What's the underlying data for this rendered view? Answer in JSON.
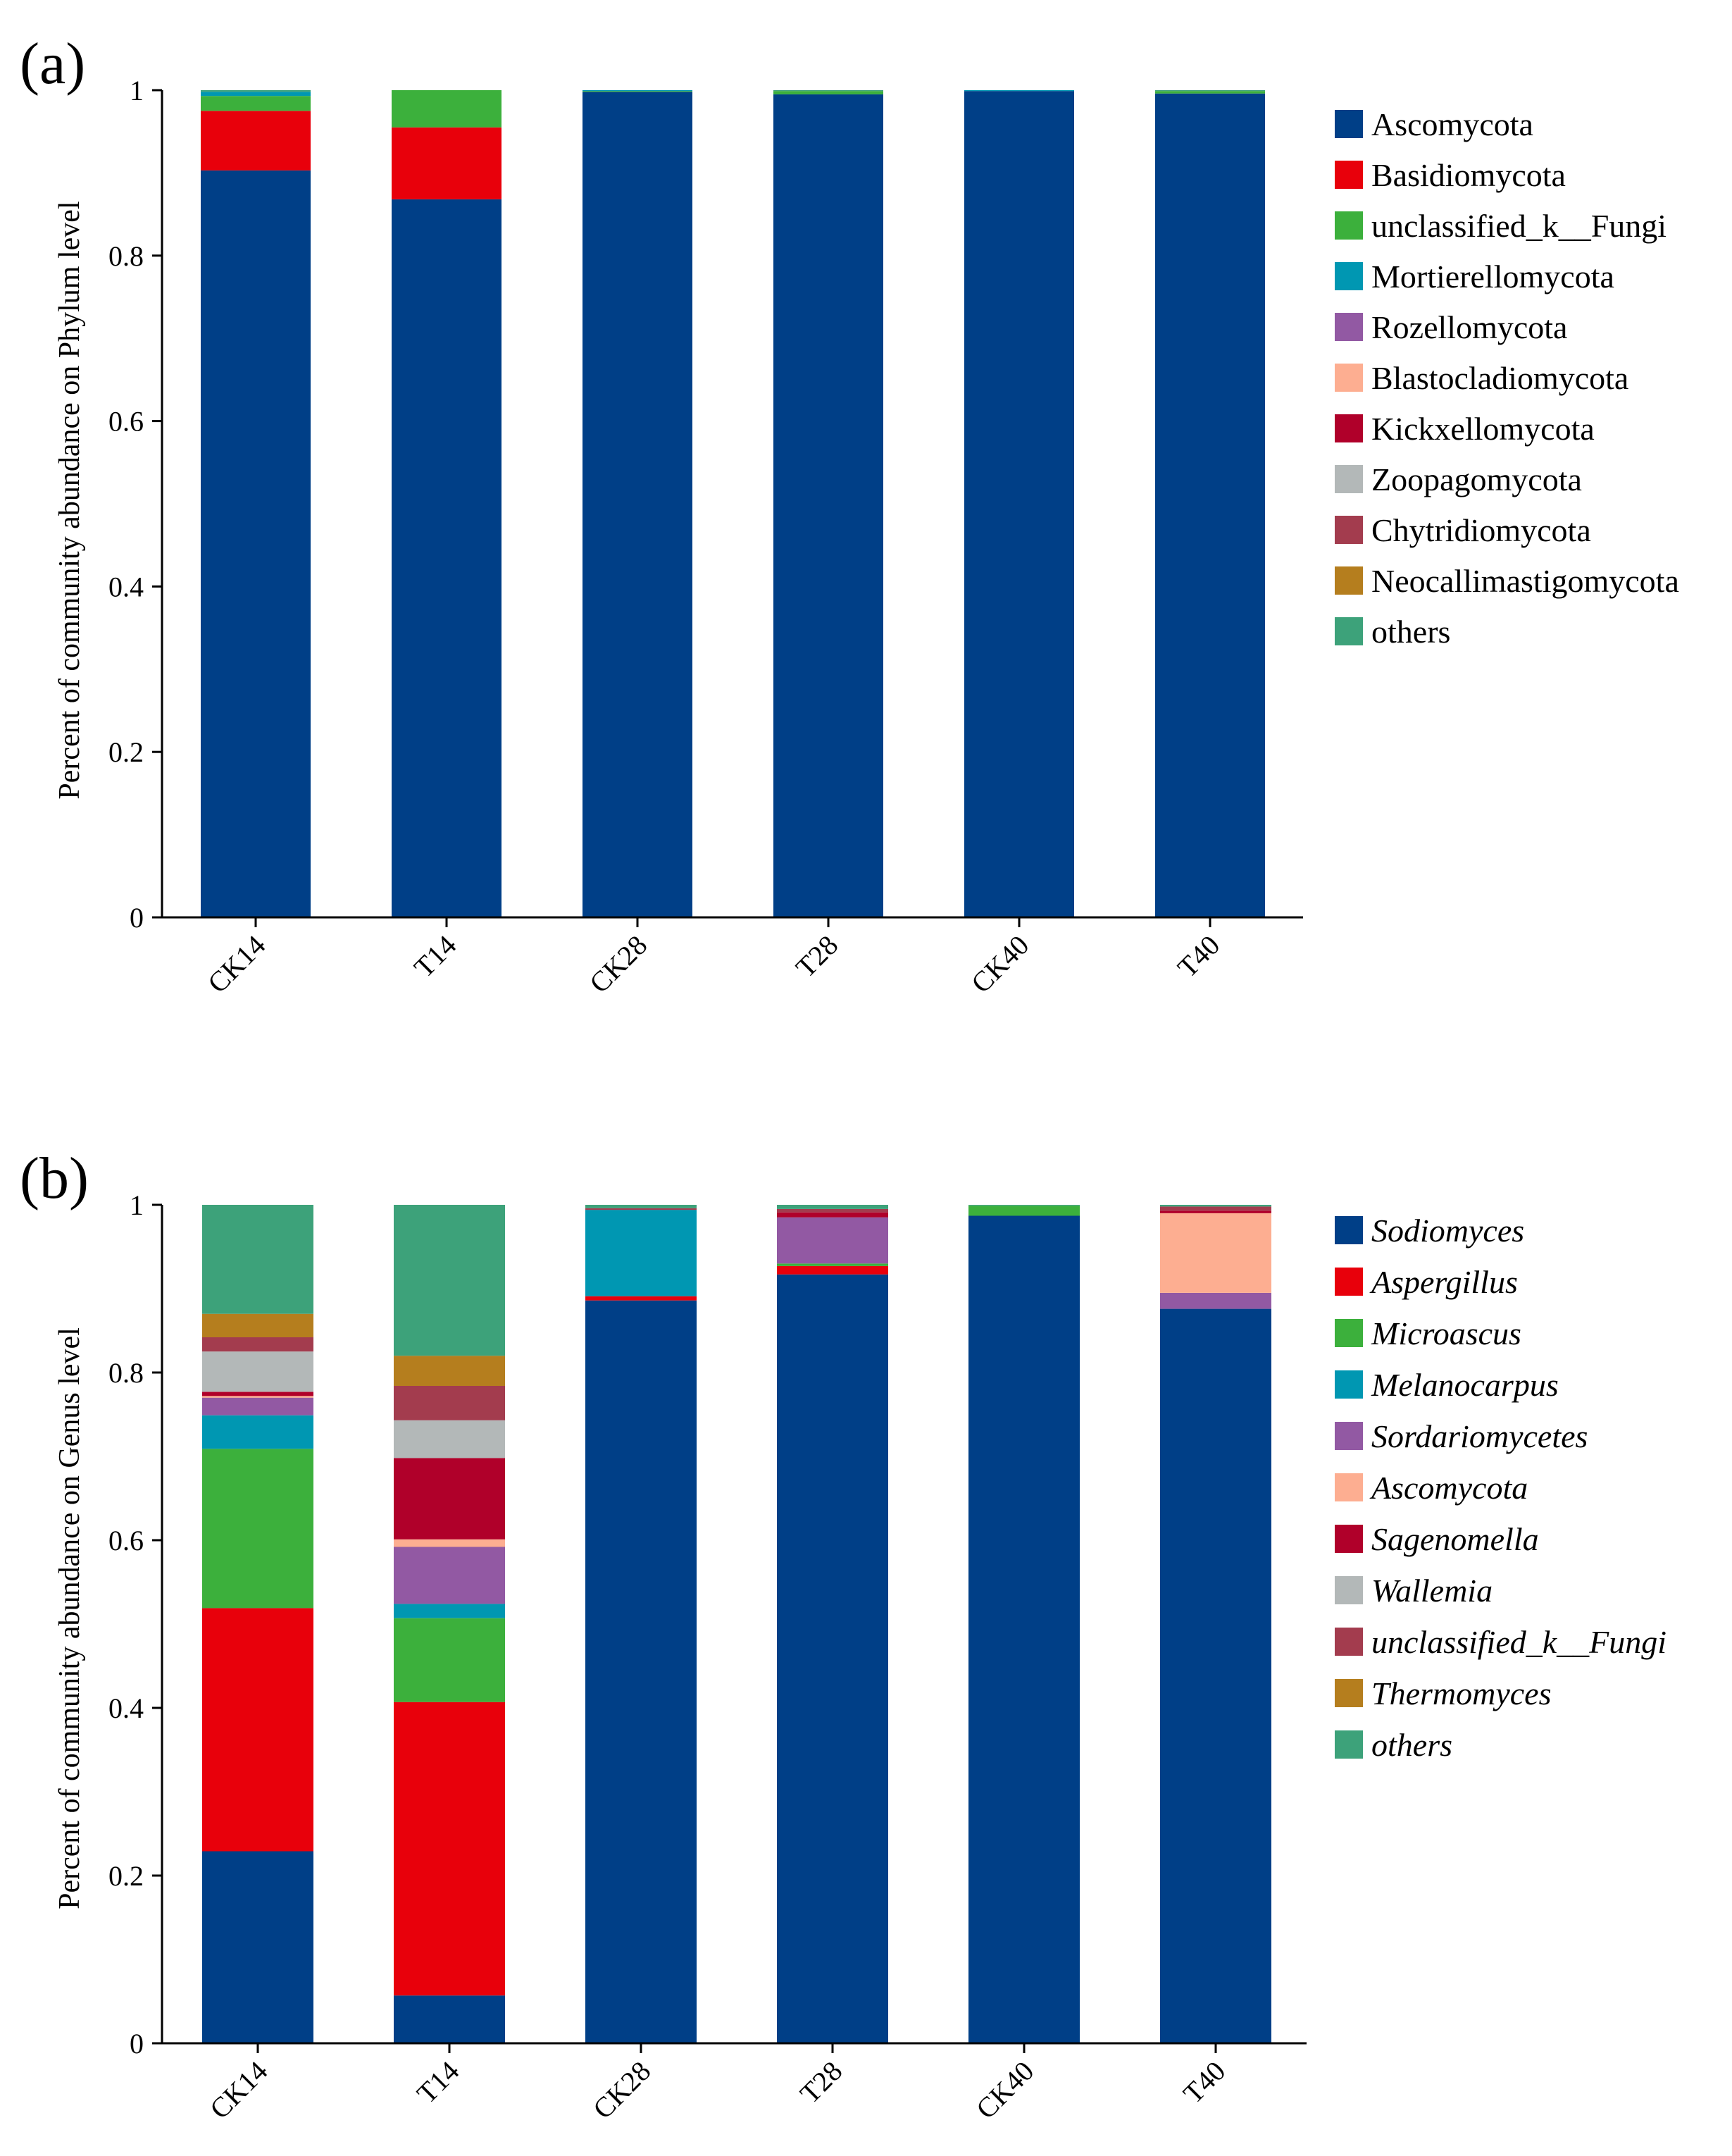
{
  "chart_data": [
    {
      "panel": "(a)",
      "type": "bar",
      "stacked": true,
      "ylabel": "Percent of community abundance on Phylum level",
      "ylim": [
        0,
        1
      ],
      "yticks": [
        "0",
        "0.2",
        "0.4",
        "0.6",
        "0.8",
        "1"
      ],
      "categories": [
        "CK14",
        "T14",
        "CK28",
        "T28",
        "CK40",
        "T40"
      ],
      "legend_italic": false,
      "series": [
        {
          "name": "Ascomycota",
          "color": "#003f87",
          "values": [
            0.903,
            0.868,
            0.998,
            0.995,
            0.999,
            0.996
          ]
        },
        {
          "name": "Basidiomycota",
          "color": "#e8000b",
          "values": [
            0.072,
            0.087,
            0.0,
            0.0,
            0.0,
            0.0
          ]
        },
        {
          "name": "unclassified_k__Fungi",
          "color": "#3cb03c",
          "values": [
            0.018,
            0.045,
            0.001,
            0.004,
            0.0,
            0.003
          ]
        },
        {
          "name": "Mortierellomycota",
          "color": "#0097b2",
          "values": [
            0.005,
            0.0,
            0.001,
            0.0,
            0.001,
            0.0
          ]
        },
        {
          "name": "Rozellomycota",
          "color": "#9259a3",
          "values": [
            0.0,
            0.0,
            0.0,
            0.0,
            0.0,
            0.0
          ]
        },
        {
          "name": "Blastocladiomycota",
          "color": "#fdae91",
          "values": [
            0.0,
            0.0,
            0.0,
            0.0,
            0.0,
            0.0
          ]
        },
        {
          "name": "Kickxellomycota",
          "color": "#b0002a",
          "values": [
            0.0,
            0.0,
            0.0,
            0.0,
            0.0,
            0.0
          ]
        },
        {
          "name": "Zoopagomycota",
          "color": "#b3b8b8",
          "values": [
            0.0,
            0.0,
            0.0,
            0.0,
            0.0,
            0.0
          ]
        },
        {
          "name": "Chytridiomycota",
          "color": "#a33c4e",
          "values": [
            0.0,
            0.0,
            0.0,
            0.0,
            0.0,
            0.0
          ]
        },
        {
          "name": "Neocallimastigomycota",
          "color": "#b57e1e",
          "values": [
            0.0,
            0.0,
            0.0,
            0.0,
            0.0,
            0.0
          ]
        },
        {
          "name": "others",
          "color": "#3da27a",
          "values": [
            0.002,
            0.0,
            0.0,
            0.001,
            0.0,
            0.001
          ]
        }
      ]
    },
    {
      "panel": "(b)",
      "type": "bar",
      "stacked": true,
      "ylabel": "Percent of community abundance on Genus level",
      "ylim": [
        0,
        1
      ],
      "yticks": [
        "0",
        "0.2",
        "0.4",
        "0.6",
        "0.8",
        "1"
      ],
      "categories": [
        "CK14",
        "T14",
        "CK28",
        "T28",
        "CK40",
        "T40"
      ],
      "legend_italic": true,
      "series": [
        {
          "name": "Sodiomyces",
          "color": "#003f87",
          "values": [
            0.229,
            0.057,
            0.886,
            0.917,
            0.987,
            0.876
          ]
        },
        {
          "name": "Aspergillus",
          "color": "#e8000b",
          "values": [
            0.29,
            0.35,
            0.005,
            0.01,
            0.0,
            0.0
          ]
        },
        {
          "name": "Microascus",
          "color": "#3cb03c",
          "values": [
            0.19,
            0.1,
            0.0,
            0.003,
            0.012,
            0.0
          ]
        },
        {
          "name": "Melanocarpus",
          "color": "#0097b2",
          "values": [
            0.04,
            0.017,
            0.103,
            0.0,
            0.0,
            0.0
          ]
        },
        {
          "name": "Sordariomycetes",
          "color": "#9259a3",
          "values": [
            0.021,
            0.068,
            0.0,
            0.055,
            0.0,
            0.019
          ]
        },
        {
          "name": "Ascomycota",
          "color": "#fdae91",
          "values": [
            0.002,
            0.009,
            0.0,
            0.0,
            0.0,
            0.095
          ]
        },
        {
          "name": "Sagenomella",
          "color": "#b0002a",
          "values": [
            0.005,
            0.097,
            0.0,
            0.006,
            0.0,
            0.003
          ]
        },
        {
          "name": "Wallemia",
          "color": "#b3b8b8",
          "values": [
            0.048,
            0.045,
            0.0,
            0.0,
            0.0,
            0.0
          ]
        },
        {
          "name": "unclassified_k__Fungi",
          "color": "#a33c4e",
          "values": [
            0.017,
            0.041,
            0.002,
            0.004,
            0.0,
            0.005
          ]
        },
        {
          "name": "Thermomyces",
          "color": "#b57e1e",
          "values": [
            0.028,
            0.036,
            0.0,
            0.0,
            0.0,
            0.0
          ]
        },
        {
          "name": "others",
          "color": "#3da27a",
          "values": [
            0.13,
            0.18,
            0.004,
            0.005,
            0.001,
            0.002
          ]
        }
      ]
    }
  ]
}
